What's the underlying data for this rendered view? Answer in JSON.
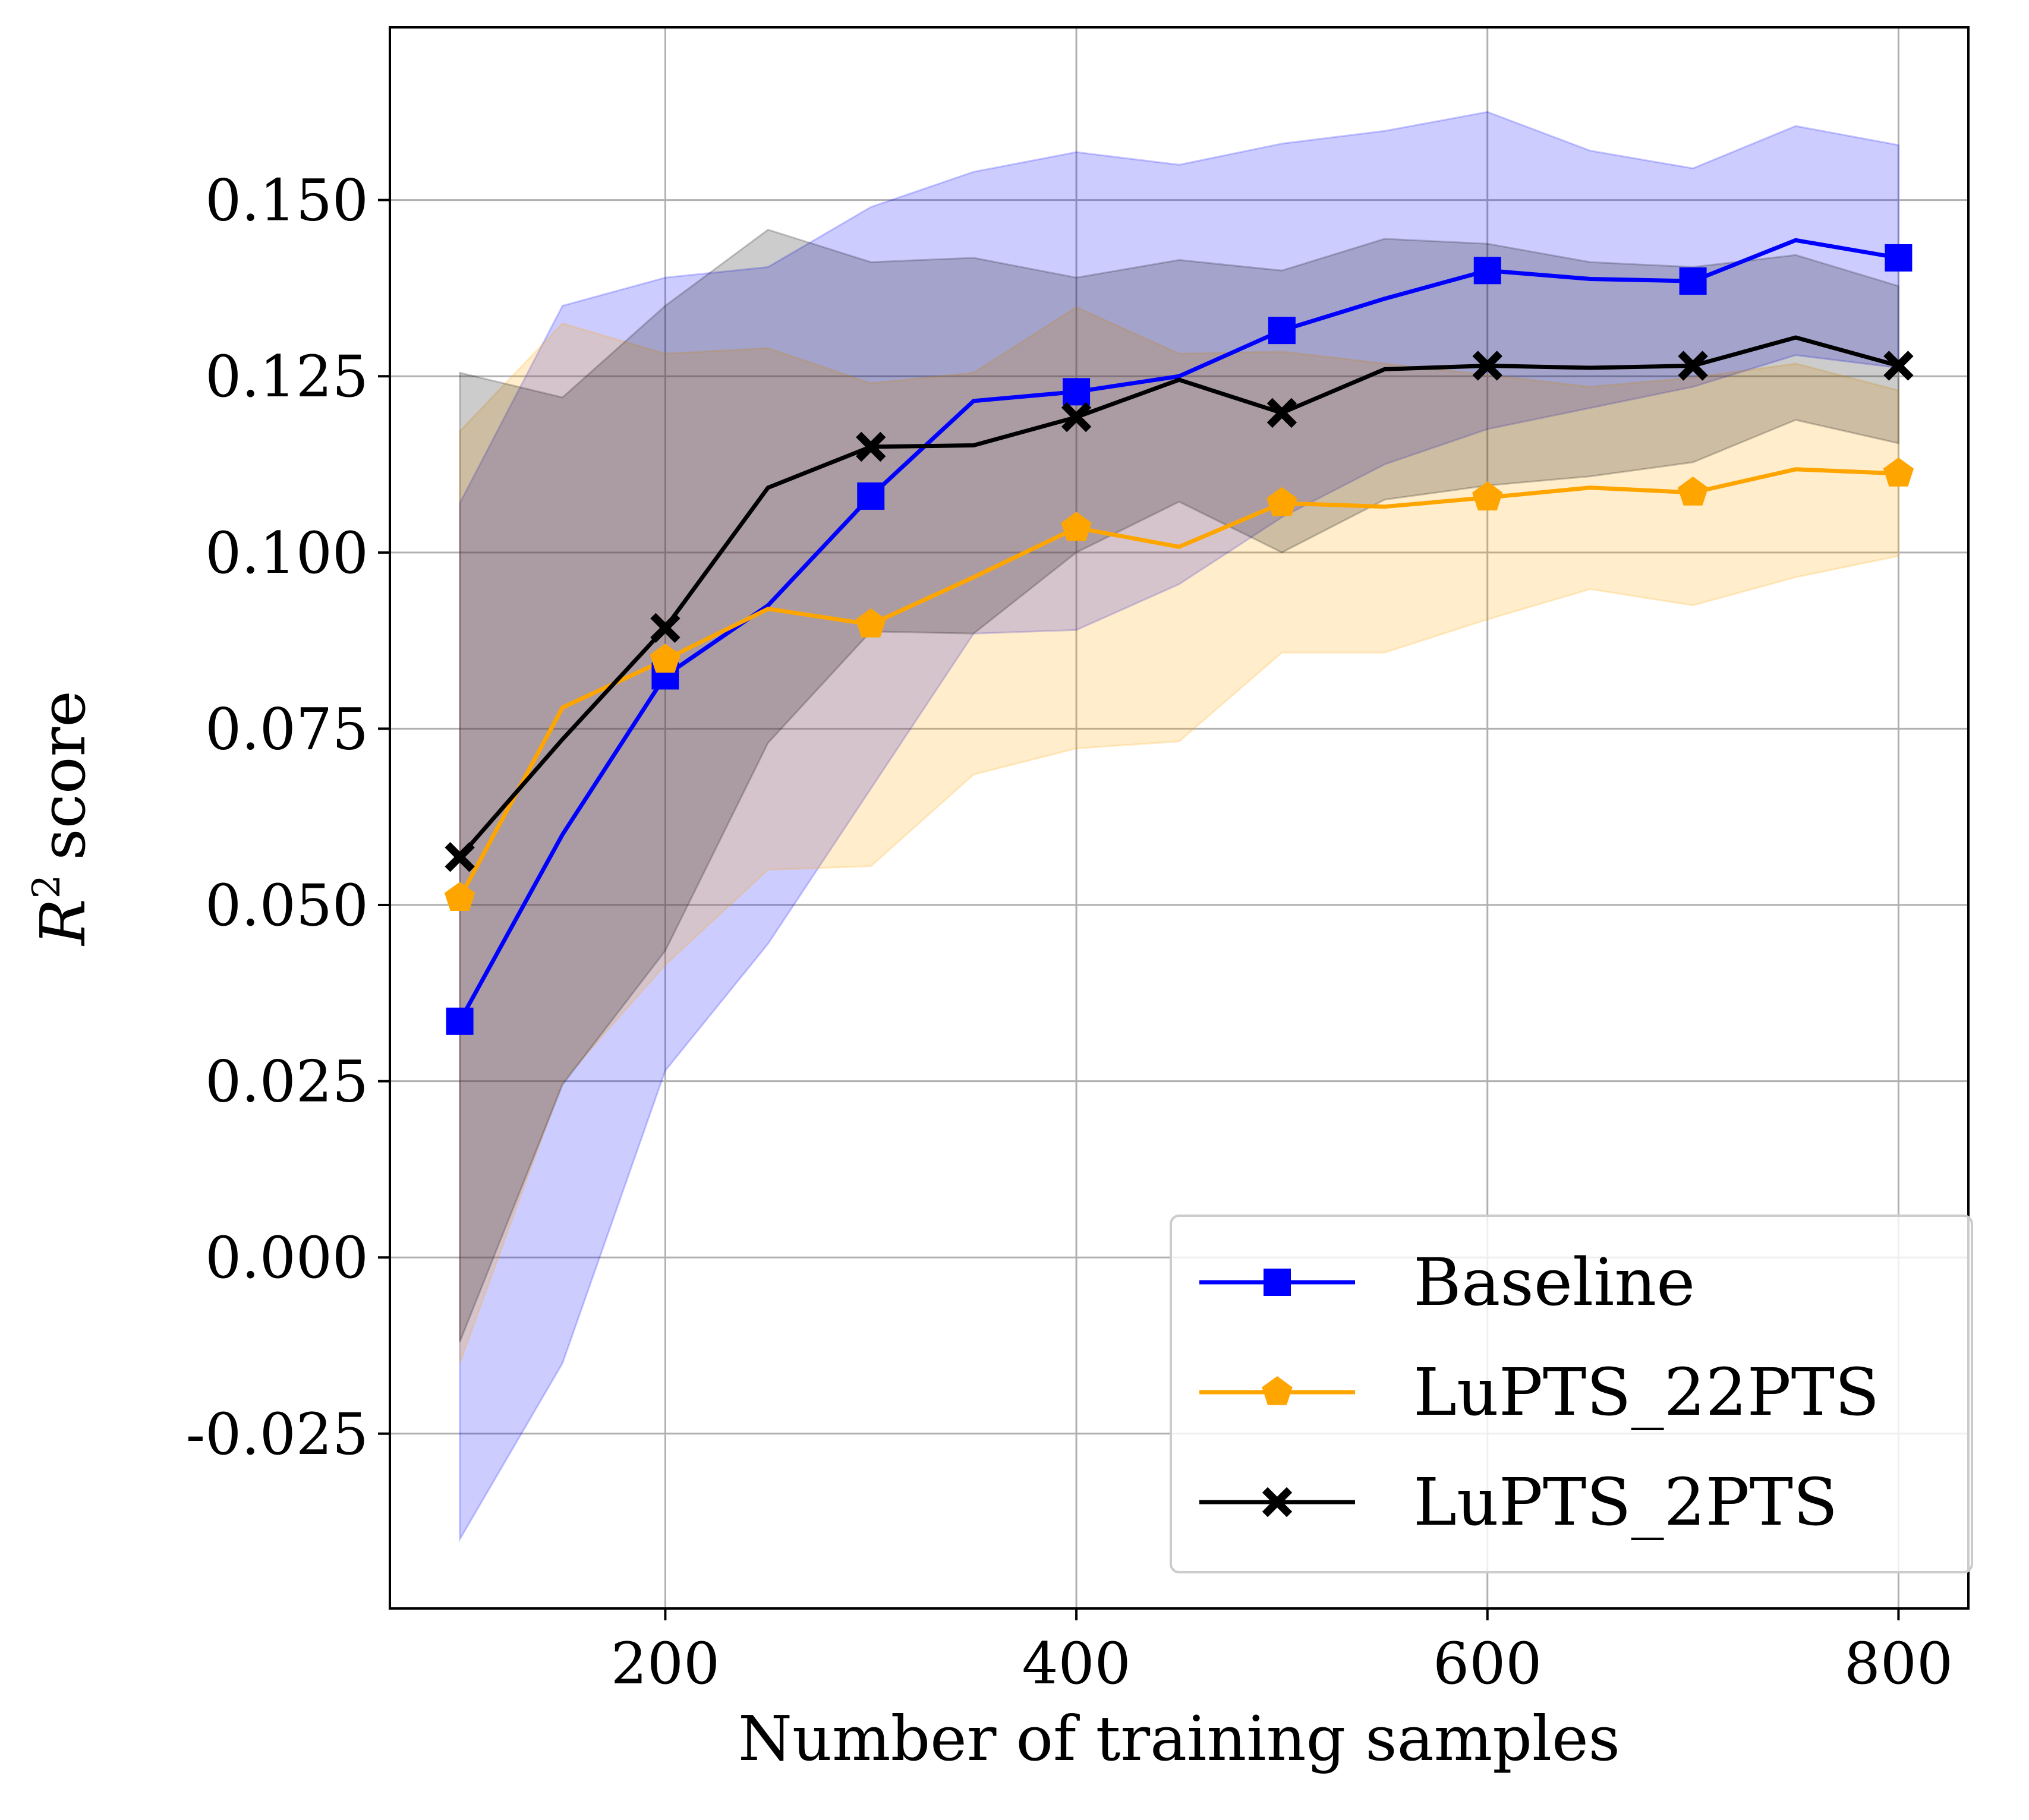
{
  "chart_data": {
    "type": "line",
    "title": "",
    "xlabel": "Number of training samples",
    "ylabel": "score",
    "ylabel_math": "R",
    "ylabel_sup": "2",
    "xlim": [
      66,
      834
    ],
    "ylim": [
      -0.0498,
      0.1745
    ],
    "grid": true,
    "legend_position": "lower right",
    "x_ticks": [
      {
        "value": 200,
        "label": "200"
      },
      {
        "value": 400,
        "label": "400"
      },
      {
        "value": 600,
        "label": "600"
      },
      {
        "value": 800,
        "label": "800"
      }
    ],
    "y_ticks": [
      {
        "value": -0.025,
        "label": "-0.025"
      },
      {
        "value": 0.0,
        "label": "0.000"
      },
      {
        "value": 0.025,
        "label": "0.025"
      },
      {
        "value": 0.05,
        "label": "0.050"
      },
      {
        "value": 0.075,
        "label": "0.075"
      },
      {
        "value": 0.1,
        "label": "0.100"
      },
      {
        "value": 0.125,
        "label": "0.125"
      },
      {
        "value": 0.15,
        "label": "0.150"
      }
    ],
    "x": [
      100,
      150,
      200,
      250,
      300,
      350,
      400,
      450,
      500,
      550,
      600,
      650,
      700,
      750,
      800
    ],
    "series": [
      {
        "name": "Baseline",
        "color": "#0000ff",
        "marker": "square",
        "values": [
          0.0335,
          0.06,
          0.0825,
          0.0925,
          0.108,
          0.1215,
          0.1228,
          0.125,
          0.1315,
          0.136,
          0.14,
          0.1388,
          0.1385,
          0.1443,
          0.1418
        ],
        "upper": [
          0.107,
          0.135,
          0.139,
          0.1405,
          0.149,
          0.154,
          0.1568,
          0.155,
          0.158,
          0.1598,
          0.1625,
          0.157,
          0.1545,
          0.1605,
          0.1578
        ],
        "lower": [
          -0.04,
          -0.015,
          0.0265,
          0.0445,
          0.0665,
          0.0885,
          0.089,
          0.0955,
          0.105,
          0.1125,
          0.1175,
          0.1205,
          0.1235,
          0.128,
          0.1262
        ]
      },
      {
        "name": "LuPTS_22PTS",
        "color": "#ffa500",
        "marker": "pentagon",
        "values": [
          0.051,
          0.078,
          0.0848,
          0.092,
          0.0898,
          0.0965,
          0.1035,
          0.1008,
          0.107,
          0.1065,
          0.1078,
          0.1092,
          0.1085,
          0.1118,
          0.1112
        ],
        "upper": [
          0.1172,
          0.1325,
          0.1282,
          0.129,
          0.124,
          0.1255,
          0.1348,
          0.1282,
          0.1285,
          0.1268,
          0.1252,
          0.1235,
          0.1248,
          0.1268,
          0.123
        ],
        "lower": [
          -0.015,
          0.025,
          0.0415,
          0.055,
          0.0555,
          0.0685,
          0.0722,
          0.0732,
          0.0858,
          0.0858,
          0.0905,
          0.0948,
          0.0925,
          0.0965,
          0.0995
        ]
      },
      {
        "name": "LuPTS_2PTS",
        "color": "#000000",
        "marker": "x",
        "values": [
          0.0568,
          0.0735,
          0.0893,
          0.1092,
          0.115,
          0.1152,
          0.1192,
          0.1245,
          0.1198,
          0.126,
          0.1265,
          0.1262,
          0.1265,
          0.1305,
          0.1265
        ],
        "upper": [
          0.1255,
          0.122,
          0.135,
          0.1458,
          0.1412,
          0.1418,
          0.139,
          0.1415,
          0.14,
          0.1445,
          0.1438,
          0.1412,
          0.1405,
          0.1422,
          0.1378
        ],
        "lower": [
          -0.012,
          0.0245,
          0.0435,
          0.073,
          0.0888,
          0.0885,
          0.1,
          0.1072,
          0.1,
          0.1075,
          0.1095,
          0.1108,
          0.1128,
          0.1188,
          0.1155
        ]
      }
    ]
  }
}
